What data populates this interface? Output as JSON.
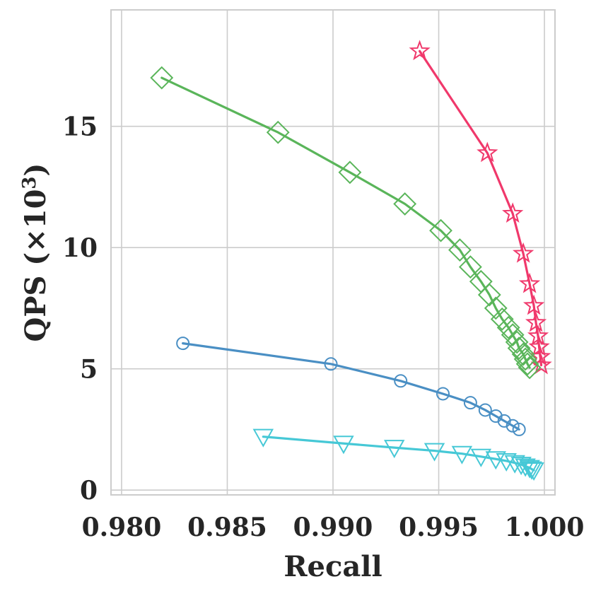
{
  "chart_data": {
    "type": "line",
    "title": "",
    "xlabel": "Recall",
    "ylabel": "QPS (×10",
    "ylabel_sup": "3",
    "ylabel_close": ")",
    "xlim": [
      0.9795,
      1.0005
    ],
    "ylim": [
      -0.2,
      19.8
    ],
    "xticks": [
      {
        "value": 0.98,
        "label": "0.980"
      },
      {
        "value": 0.985,
        "label": "0.985"
      },
      {
        "value": 0.99,
        "label": "0.990"
      },
      {
        "value": 0.995,
        "label": "0.995"
      },
      {
        "value": 1.0,
        "label": "1.000"
      }
    ],
    "yticks": [
      {
        "value": 0,
        "label": "0"
      },
      {
        "value": 5,
        "label": "5"
      },
      {
        "value": 10,
        "label": "10"
      },
      {
        "value": 15,
        "label": "15"
      }
    ],
    "grid": true,
    "legend": "none",
    "series": [
      {
        "marker": "star",
        "color": "#f0386b",
        "points": [
          [
            0.9941,
            18.1
          ],
          [
            0.9973,
            13.9
          ],
          [
            0.9985,
            11.4
          ],
          [
            0.999,
            9.75
          ],
          [
            0.9993,
            8.5
          ],
          [
            0.9995,
            7.6
          ],
          [
            0.9996,
            6.9
          ],
          [
            0.9997,
            6.35
          ],
          [
            0.99975,
            5.9
          ],
          [
            0.9998,
            5.5
          ],
          [
            0.99985,
            5.15
          ]
        ]
      },
      {
        "marker": "diamond",
        "color": "#5ab55a",
        "points": [
          [
            0.9819,
            17.0
          ],
          [
            0.9874,
            14.75
          ],
          [
            0.9908,
            13.1
          ],
          [
            0.9934,
            11.8
          ],
          [
            0.9951,
            10.7
          ],
          [
            0.996,
            9.9
          ],
          [
            0.9965,
            9.2
          ],
          [
            0.997,
            8.6
          ],
          [
            0.9974,
            8.05
          ],
          [
            0.9977,
            7.5
          ],
          [
            0.998,
            7.05
          ],
          [
            0.9983,
            6.7
          ],
          [
            0.9985,
            6.4
          ],
          [
            0.9987,
            6.1
          ],
          [
            0.9988,
            5.85
          ],
          [
            0.999,
            5.6
          ],
          [
            0.9991,
            5.4
          ],
          [
            0.9992,
            5.2
          ],
          [
            0.9993,
            5.05
          ]
        ]
      },
      {
        "marker": "circle",
        "color": "#4a8fc4",
        "points": [
          [
            0.9829,
            6.05
          ],
          [
            0.9899,
            5.2
          ],
          [
            0.9932,
            4.5
          ],
          [
            0.9952,
            3.97
          ],
          [
            0.9965,
            3.6
          ],
          [
            0.9972,
            3.3
          ],
          [
            0.9977,
            3.05
          ],
          [
            0.9981,
            2.85
          ],
          [
            0.9985,
            2.65
          ],
          [
            0.9988,
            2.5
          ]
        ]
      },
      {
        "marker": "triangle-down",
        "color": "#46c8d6",
        "points": [
          [
            0.9867,
            2.2
          ],
          [
            0.9905,
            1.92
          ],
          [
            0.9929,
            1.75
          ],
          [
            0.9948,
            1.62
          ],
          [
            0.9961,
            1.5
          ],
          [
            0.997,
            1.38
          ],
          [
            0.9977,
            1.28
          ],
          [
            0.9982,
            1.2
          ],
          [
            0.9986,
            1.12
          ],
          [
            0.9989,
            1.05
          ],
          [
            0.9991,
            0.98
          ],
          [
            0.9993,
            0.92
          ],
          [
            0.9994,
            0.86
          ],
          [
            0.9995,
            0.82
          ]
        ]
      }
    ]
  }
}
